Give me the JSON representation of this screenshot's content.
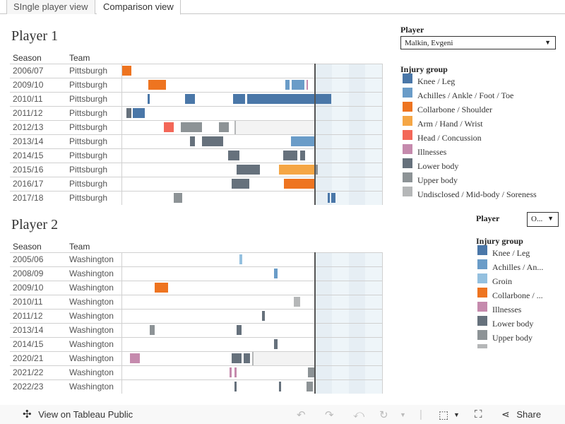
{
  "tabs": [
    {
      "label": "SIngle player view",
      "active": false
    },
    {
      "label": "Comparison view",
      "active": true
    }
  ],
  "columns": {
    "season": "Season",
    "team": "Team"
  },
  "colors": {
    "knee_leg": "#4a77a8",
    "achilles": "#6a9cc8",
    "groin": "#94c0df",
    "collarbone": "#ee7420",
    "arm": "#f5a645",
    "head": "#f36758",
    "illness": "#c58aad",
    "lower": "#66717c",
    "upper": "#8d9396",
    "undisclosed": "#b5b7b8",
    "ir": "#f3f3f3",
    "now": "#555555"
  },
  "chart_data": [
    {
      "type": "gantt",
      "title": "Player 1",
      "x_note": "normalized season timeline; 0 = season start, 100 = current date marker, 135 = right edge",
      "xlim": [
        0,
        135
      ],
      "rows": [
        {
          "season": "2006/07",
          "team": "Pittsburgh",
          "bars": [
            {
              "start": 0,
              "end": 5,
              "type": "collarbone"
            }
          ]
        },
        {
          "season": "2009/10",
          "team": "Pittsburgh",
          "bars": [
            {
              "start": 14,
              "end": 23,
              "type": "collarbone"
            },
            {
              "start": 84.5,
              "end": 87,
              "type": "achilles"
            },
            {
              "start": 88,
              "end": 94.5,
              "type": "achilles"
            },
            {
              "start": 95.5,
              "end": 96.5,
              "type": "illness"
            }
          ]
        },
        {
          "season": "2010/11",
          "team": "Pittsburgh",
          "bars": [
            {
              "start": 13.5,
              "end": 14.5,
              "type": "knee_leg"
            },
            {
              "start": 33,
              "end": 38,
              "type": "knee_leg"
            },
            {
              "start": 57.5,
              "end": 64,
              "type": "knee_leg"
            },
            {
              "start": 65,
              "end": 108.5,
              "type": "knee_leg"
            }
          ]
        },
        {
          "season": "2011/12",
          "team": "Pittsburgh",
          "bars": [
            {
              "start": 2.5,
              "end": 5,
              "type": "lower"
            },
            {
              "start": 6,
              "end": 12,
              "type": "knee_leg"
            }
          ]
        },
        {
          "season": "2012/13",
          "team": "Pittsburgh",
          "bars": [
            {
              "start": 22,
              "end": 27,
              "type": "head"
            },
            {
              "start": 30.5,
              "end": 41.5,
              "type": "upper"
            },
            {
              "start": 50.5,
              "end": 55.5,
              "type": "upper"
            }
          ],
          "ir": {
            "start": 58.5,
            "end": 100
          }
        },
        {
          "season": "2013/14",
          "team": "Pittsburgh",
          "bars": [
            {
              "start": 35.5,
              "end": 38,
              "type": "lower"
            },
            {
              "start": 41.5,
              "end": 52.5,
              "type": "lower"
            },
            {
              "start": 87.5,
              "end": 100,
              "type": "achilles"
            }
          ]
        },
        {
          "season": "2014/15",
          "team": "Pittsburgh",
          "bars": [
            {
              "start": 55,
              "end": 61,
              "type": "lower"
            },
            {
              "start": 83.5,
              "end": 91,
              "type": "lower"
            },
            {
              "start": 92.5,
              "end": 95,
              "type": "lower"
            }
          ]
        },
        {
          "season": "2015/16",
          "team": "Pittsburgh",
          "bars": [
            {
              "start": 59.5,
              "end": 71.5,
              "type": "lower"
            },
            {
              "start": 81.5,
              "end": 100,
              "type": "arm"
            },
            {
              "start": 100,
              "end": 101.5,
              "type": "upper"
            }
          ]
        },
        {
          "season": "2016/17",
          "team": "Pittsburgh",
          "bars": [
            {
              "start": 57,
              "end": 66,
              "type": "lower"
            },
            {
              "start": 84,
              "end": 100,
              "type": "collarbone"
            }
          ]
        },
        {
          "season": "2017/18",
          "team": "Pittsburgh",
          "bars": [
            {
              "start": 27,
              "end": 31.5,
              "type": "upper"
            },
            {
              "start": 106.5,
              "end": 107.5,
              "type": "knee_leg"
            },
            {
              "start": 108.5,
              "end": 110.5,
              "type": "knee_leg"
            }
          ]
        }
      ]
    },
    {
      "type": "gantt",
      "title": "Player 2",
      "x_note": "normalized season timeline; 0 = season start, 100 = current date marker, 135 = right edge",
      "xlim": [
        0,
        135
      ],
      "rows": [
        {
          "season": "2005/06",
          "team": "Washington",
          "bars": [
            {
              "start": 61,
              "end": 62.5,
              "type": "groin"
            }
          ]
        },
        {
          "season": "2008/09",
          "team": "Washington",
          "bars": [
            {
              "start": 79,
              "end": 80.5,
              "type": "achilles"
            }
          ]
        },
        {
          "season": "2009/10",
          "team": "Washington",
          "bars": [
            {
              "start": 17,
              "end": 24,
              "type": "collarbone"
            }
          ]
        },
        {
          "season": "2010/11",
          "team": "Washington",
          "bars": [
            {
              "start": 89,
              "end": 92.5,
              "type": "undisclosed"
            }
          ]
        },
        {
          "season": "2011/12",
          "team": "Washington",
          "bars": [
            {
              "start": 72.5,
              "end": 74,
              "type": "lower"
            }
          ]
        },
        {
          "season": "2013/14",
          "team": "Washington",
          "bars": [
            {
              "start": 14.5,
              "end": 17,
              "type": "upper"
            },
            {
              "start": 59.5,
              "end": 62,
              "type": "lower"
            }
          ]
        },
        {
          "season": "2014/15",
          "team": "Washington",
          "bars": [
            {
              "start": 79,
              "end": 80.5,
              "type": "lower"
            }
          ]
        },
        {
          "season": "2020/21",
          "team": "Washington",
          "bars": [
            {
              "start": 4.5,
              "end": 9.5,
              "type": "illness"
            },
            {
              "start": 57,
              "end": 62,
              "type": "lower"
            },
            {
              "start": 63,
              "end": 66.5,
              "type": "lower"
            }
          ],
          "ir": {
            "start": 67.5,
            "end": 100
          }
        },
        {
          "season": "2021/22",
          "team": "Washington",
          "bars": [
            {
              "start": 56,
              "end": 57,
              "type": "illness"
            },
            {
              "start": 58.5,
              "end": 59.5,
              "type": "illness"
            },
            {
              "start": 96.5,
              "end": 100,
              "type": "upper"
            }
          ]
        },
        {
          "season": "2022/23",
          "team": "Washington",
          "bars": [
            {
              "start": 58.5,
              "end": 59.5,
              "type": "lower"
            },
            {
              "start": 81.5,
              "end": 82.5,
              "type": "lower"
            },
            {
              "start": 95.5,
              "end": 99,
              "type": "upper"
            }
          ]
        }
      ]
    }
  ],
  "panel1": {
    "player_label": "Player",
    "player_value": "Malkin, Evgeni",
    "legend_title": "Injury group",
    "legend": [
      {
        "label": "Knee / Leg",
        "type": "knee_leg"
      },
      {
        "label": "Achilles / Ankle / Foot / Toe",
        "type": "achilles"
      },
      {
        "label": "Collarbone / Shoulder",
        "type": "collarbone"
      },
      {
        "label": "Arm / Hand / Wrist",
        "type": "arm"
      },
      {
        "label": "Head / Concussion",
        "type": "head"
      },
      {
        "label": "Illnesses",
        "type": "illness"
      },
      {
        "label": "Lower body",
        "type": "lower"
      },
      {
        "label": "Upper body",
        "type": "upper"
      },
      {
        "label": "Undisclosed / Mid-body / Soreness",
        "type": "undisclosed"
      }
    ]
  },
  "panel2": {
    "player_label": "Player",
    "player_value": "O...",
    "legend_title": "Injury group",
    "legend": [
      {
        "label": "Knee / Leg",
        "type": "knee_leg"
      },
      {
        "label": "Achilles / An...",
        "type": "achilles"
      },
      {
        "label": "Groin",
        "type": "groin"
      },
      {
        "label": "Collarbone / ...",
        "type": "collarbone"
      },
      {
        "label": "Illnesses",
        "type": "illness"
      },
      {
        "label": "Lower body",
        "type": "lower"
      },
      {
        "label": "Upper body",
        "type": "upper"
      },
      {
        "label": "",
        "type": "undisclosed"
      }
    ]
  },
  "footer": {
    "view_label": "View on Tableau Public",
    "share_label": "Share"
  }
}
